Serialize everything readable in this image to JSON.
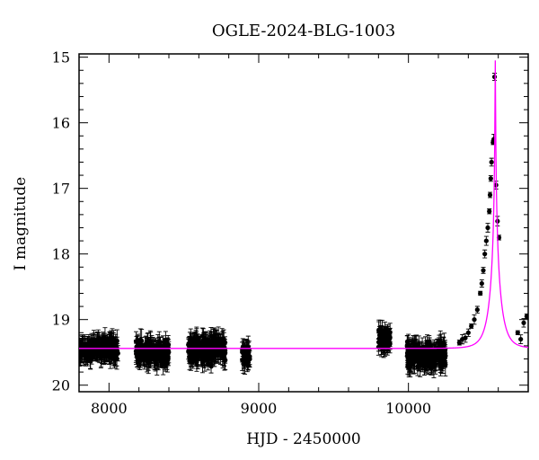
{
  "chart_data": {
    "type": "scatter",
    "title": "OGLE-2024-BLG-1003",
    "xlabel": "HJD - 2450000",
    "ylabel": "I magnitude",
    "xlim": [
      7800,
      10800
    ],
    "ylim": [
      20.1,
      14.95
    ],
    "y_inverted": true,
    "x_ticks": [
      8000,
      9000,
      10000
    ],
    "y_ticks": [
      15,
      16,
      17,
      18,
      19,
      20
    ],
    "baseline_mag": 19.44,
    "peak_time": 10580,
    "peak_mag": 15.05,
    "series": [
      {
        "name": "observations",
        "marker": "filled circle with error bars",
        "color": "#000000",
        "clusters": [
          {
            "t_start": 7800,
            "t_end": 8060,
            "mag_center": 19.45,
            "mag_scatter": 0.12
          },
          {
            "t_start": 8180,
            "t_end": 8400,
            "mag_center": 19.5,
            "mag_scatter": 0.13
          },
          {
            "t_start": 8530,
            "t_end": 8780,
            "mag_center": 19.45,
            "mag_scatter": 0.15
          },
          {
            "t_start": 8890,
            "t_end": 8940,
            "mag_center": 19.55,
            "mag_scatter": 0.1
          },
          {
            "t_start": 9800,
            "t_end": 9880,
            "mag_center": 19.3,
            "mag_scatter": 0.12
          },
          {
            "t_start": 9990,
            "t_end": 10250,
            "mag_center": 19.55,
            "mag_scatter": 0.15
          }
        ],
        "peak_points": [
          [
            10340,
            19.35
          ],
          [
            10360,
            19.3
          ],
          [
            10380,
            19.28
          ],
          [
            10400,
            19.2
          ],
          [
            10420,
            19.1
          ],
          [
            10440,
            19.0
          ],
          [
            10460,
            18.85
          ],
          [
            10480,
            18.6
          ],
          [
            10490,
            18.45
          ],
          [
            10500,
            18.25
          ],
          [
            10510,
            18.0
          ],
          [
            10520,
            17.8
          ],
          [
            10530,
            17.6
          ],
          [
            10540,
            17.35
          ],
          [
            10545,
            17.1
          ],
          [
            10550,
            16.85
          ],
          [
            10555,
            16.6
          ],
          [
            10565,
            16.3
          ],
          [
            10570,
            16.25
          ],
          [
            10575,
            15.3
          ],
          [
            10585,
            16.95
          ],
          [
            10595,
            17.5
          ],
          [
            10605,
            17.75
          ],
          [
            10730,
            19.2
          ],
          [
            10750,
            19.3
          ],
          [
            10770,
            19.05
          ],
          [
            10790,
            18.95
          ]
        ]
      },
      {
        "name": "model",
        "color": "#ff00ff",
        "line": "point-lens microlensing fit"
      }
    ]
  }
}
